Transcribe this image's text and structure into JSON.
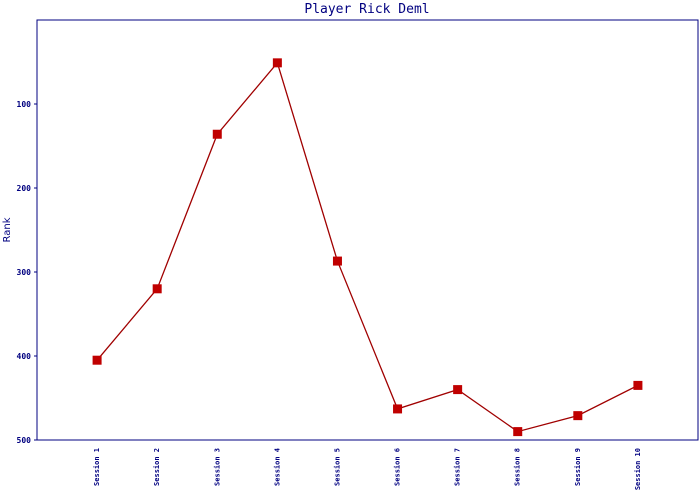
{
  "chart_data": {
    "type": "line",
    "title": "Player Rick Deml",
    "y_label": "Rank",
    "categories": [
      "Session 1",
      "Session 2",
      "Session 3",
      "Session 4",
      "Session 5",
      "Session 6",
      "Session 7",
      "Session 8",
      "Session 9",
      "Session 10"
    ],
    "series": [
      {
        "name": "Rank",
        "color": "#a00000",
        "marker_color": "#c00000",
        "values": [
          405,
          320,
          136,
          51,
          287,
          463,
          440,
          490,
          471,
          435
        ]
      }
    ],
    "ylim": [
      0,
      500
    ],
    "y_inverted": true,
    "yticks": [
      100,
      200,
      300,
      400,
      500
    ],
    "grid": false,
    "legend": false
  }
}
